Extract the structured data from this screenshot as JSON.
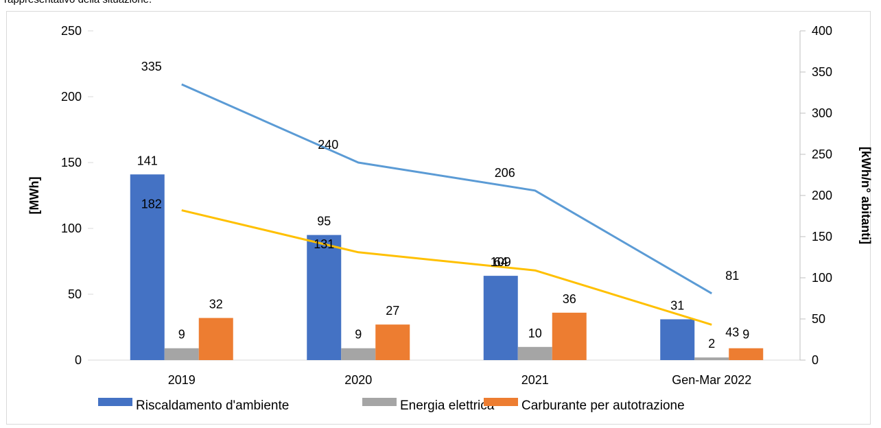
{
  "page": {
    "top_text": "rappresentativo della situazione."
  },
  "chart_data": {
    "type": "bar",
    "categories": [
      "2019",
      "2020",
      "2021",
      "Gen-Mar 2022"
    ],
    "series": [
      {
        "name": "Riscaldamento d'ambiente",
        "kind": "bar",
        "axis": "left",
        "color": "#4472c4",
        "values": [
          141,
          95,
          64,
          31
        ]
      },
      {
        "name": "Energia elettrica",
        "kind": "bar",
        "axis": "left",
        "color": "#a5a5a5",
        "values": [
          9,
          9,
          10,
          2
        ]
      },
      {
        "name": "Carburante per autotrazione",
        "kind": "bar",
        "axis": "left",
        "color": "#ed7d31",
        "values": [
          32,
          27,
          36,
          9
        ]
      },
      {
        "name": "",
        "kind": "line",
        "axis": "right",
        "color": "#5b9bd5",
        "values": [
          335,
          240,
          206,
          81
        ]
      },
      {
        "name": "",
        "kind": "line",
        "axis": "right",
        "color": "#ffc000",
        "values": [
          182,
          131,
          109,
          43
        ]
      }
    ],
    "ylabel_left": "[MWh]",
    "ylabel_right": "[kWh/n° abitanti]",
    "ylim_left": [
      0,
      250
    ],
    "yticks_left": [
      "0",
      "50",
      "100",
      "150",
      "200",
      "250"
    ],
    "ylim_right": [
      0,
      400
    ],
    "yticks_right": [
      "0",
      "50",
      "100",
      "150",
      "200",
      "250",
      "300",
      "350",
      "400"
    ],
    "grid": false,
    "legend_position": "bottom"
  }
}
